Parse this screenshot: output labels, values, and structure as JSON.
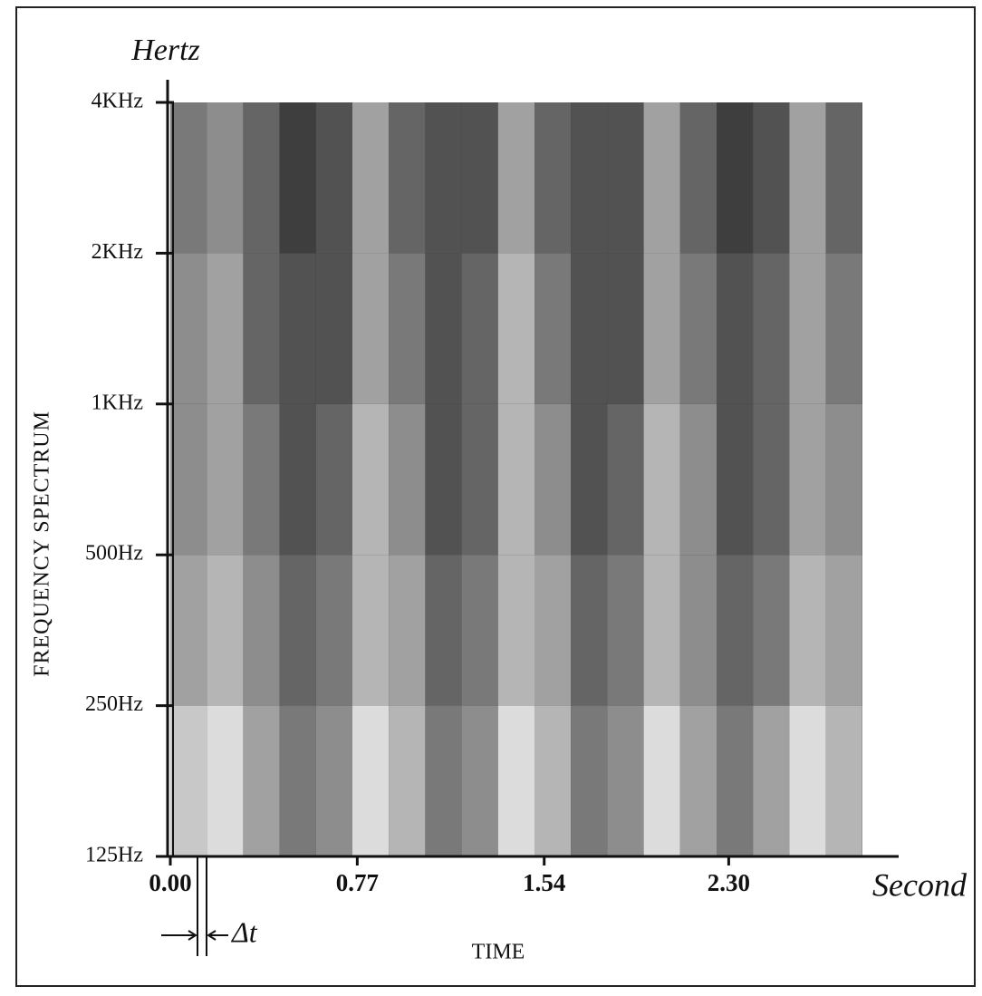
{
  "chart_data": {
    "type": "spectrogram",
    "y_title": "Hertz",
    "x_title": "Second",
    "y_axis_label": "FREQUENCY SPECTRUM",
    "x_axis_label": "TIME",
    "annotation": "Δt",
    "xlim": [
      0,
      3.0
    ],
    "xticks": [
      {
        "value": 0,
        "label": "0.00"
      },
      0.77,
      1.54,
      {
        "value": 2.3,
        "label": "2.30"
      }
    ],
    "ylim": [
      125,
      4000
    ],
    "ylog": true,
    "yticks": [
      {
        "value": 125,
        "label": "125Hz"
      },
      {
        "value": 250,
        "label": "250Hz"
      },
      {
        "value": 500,
        "label": "500Hz"
      },
      {
        "value": 1000,
        "label": "1KHz"
      },
      {
        "value": 2000,
        "label": "2KHz"
      },
      {
        "value": 4000,
        "label": "4KHz"
      }
    ],
    "bins": [
      0,
      0.15,
      0.3,
      0.45,
      0.6,
      0.75,
      0.9,
      1.05,
      1.2,
      1.35,
      1.5,
      1.65,
      1.8,
      1.95,
      2.1,
      2.25,
      2.4,
      2.55,
      2.7,
      2.85
    ],
    "ybins": [
      125,
      250,
      500,
      1000,
      2000,
      4000
    ],
    "zlim": [
      0,
      10
    ],
    "colormap": [
      "#2a2a2a",
      "#f0f0f0"
    ],
    "z": [
      [
        8,
        9,
        6,
        4,
        5,
        9,
        7,
        4,
        5,
        9,
        7,
        4,
        5,
        9,
        6,
        4,
        6,
        9,
        7
      ],
      [
        6,
        7,
        5,
        3,
        4,
        7,
        6,
        3,
        4,
        7,
        6,
        3,
        4,
        7,
        5,
        3,
        4,
        7,
        6
      ],
      [
        5,
        6,
        4,
        2,
        3,
        7,
        5,
        2,
        3,
        7,
        5,
        2,
        3,
        7,
        5,
        2,
        3,
        6,
        5
      ],
      [
        5,
        6,
        3,
        2,
        2,
        6,
        4,
        2,
        3,
        7,
        4,
        2,
        2,
        6,
        4,
        2,
        3,
        6,
        4
      ],
      [
        4,
        5,
        3,
        1,
        2,
        6,
        3,
        2,
        2,
        6,
        3,
        2,
        2,
        6,
        3,
        1,
        2,
        6,
        3
      ]
    ],
    "grid": false
  }
}
